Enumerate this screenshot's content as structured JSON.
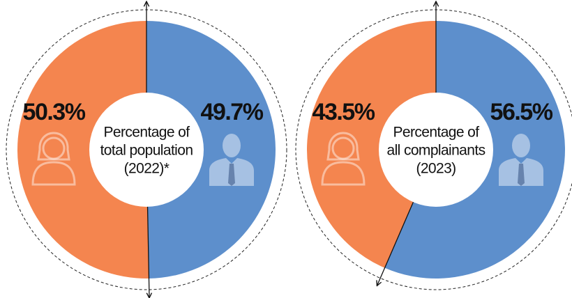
{
  "chart_data": [
    {
      "type": "pie",
      "values": [
        50.3,
        49.7
      ],
      "value_labels": [
        "50.3%",
        "49.7%"
      ],
      "colors": [
        "#f4854f",
        "#5d8fcc"
      ],
      "center_label": [
        "Percentage of",
        "total population",
        "(2022)*"
      ]
    },
    {
      "type": "pie",
      "values": [
        43.5,
        56.5
      ],
      "value_labels": [
        "43.5%",
        "56.5%"
      ],
      "colors": [
        "#f4854f",
        "#5d8fcc"
      ],
      "center_label": [
        "Percentage of",
        "all complainants",
        "(2023)"
      ]
    }
  ]
}
